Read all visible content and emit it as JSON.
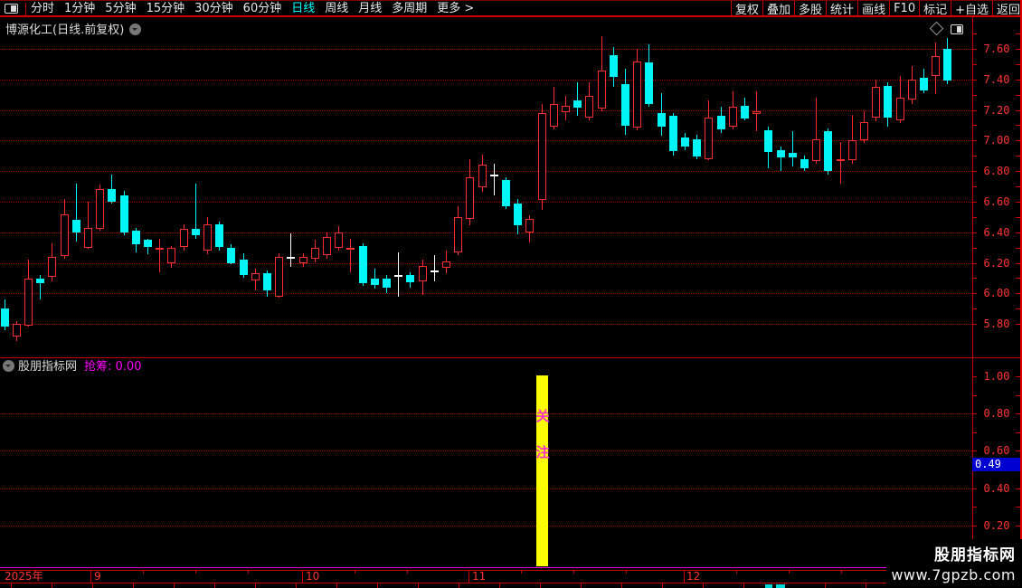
{
  "topbar": {
    "left_items": [
      {
        "label": "分时",
        "active": false
      },
      {
        "label": "1分钟",
        "active": false
      },
      {
        "label": "5分钟",
        "active": false
      },
      {
        "label": "15分钟",
        "active": false
      },
      {
        "label": "30分钟",
        "active": false
      },
      {
        "label": "60分钟",
        "active": false
      },
      {
        "label": "日线",
        "active": true
      },
      {
        "label": "周线",
        "active": false
      },
      {
        "label": "月线",
        "active": false
      },
      {
        "label": "多周期",
        "active": false
      },
      {
        "label": "更多 >",
        "active": false
      }
    ],
    "right_items": [
      "复权",
      "叠加",
      "多股",
      "统计",
      "画线",
      "F10",
      "标记",
      "+自选",
      "返回"
    ]
  },
  "title_bar": {
    "title": "博源化工(日线.前复权)"
  },
  "indicator": {
    "source": "股朋指标网",
    "display": "抢筹: 0.00",
    "name": "抢筹",
    "value": "0.00",
    "signal_chars": [
      "关",
      "注"
    ],
    "marker_value": "0.49"
  },
  "time_axis": {
    "labels": [
      {
        "text": "2025年",
        "x": 5
      },
      {
        "text": "9",
        "x": 104
      },
      {
        "text": "10",
        "x": 338
      },
      {
        "text": "11",
        "x": 522
      },
      {
        "text": "12",
        "x": 759
      }
    ],
    "month_boundaries": [
      100,
      334,
      518,
      756
    ]
  },
  "watermark": {
    "line1": "股朋指标网",
    "line2": "www.7gpzb.com"
  },
  "colors": {
    "up": "#fd2e2e",
    "down": "#00f6f6",
    "flat": "#ffffff",
    "grid": "#9e0000",
    "axis_text": "#ff3434",
    "line": "#c80000",
    "magenta": "#ff00ff",
    "signal_bar": "#ffff00",
    "marker_bg": "#0000d0",
    "active_tab": "#00ffff"
  },
  "chart_data": {
    "type": "candlestick",
    "title": "博源化工(日线.前复权)",
    "x_axis_labels": [
      "2025年",
      "9",
      "10",
      "11",
      "12"
    ],
    "y_axis_ticks": [
      7.6,
      7.4,
      7.2,
      7.0,
      6.8,
      6.6,
      6.4,
      6.2,
      6.0,
      5.8
    ],
    "price_range_visible": [
      5.69,
      7.68
    ],
    "ohlc": [
      [
        5.9,
        5.96,
        5.76,
        5.78
      ],
      [
        5.72,
        5.82,
        5.69,
        5.8
      ],
      [
        5.79,
        6.22,
        5.78,
        6.1
      ],
      [
        6.1,
        6.12,
        5.96,
        6.07
      ],
      [
        6.11,
        6.33,
        6.08,
        6.24
      ],
      [
        6.25,
        6.62,
        6.23,
        6.52
      ],
      [
        6.48,
        6.72,
        6.34,
        6.4
      ],
      [
        6.3,
        6.6,
        6.29,
        6.43
      ],
      [
        6.42,
        6.71,
        6.41,
        6.68
      ],
      [
        6.68,
        6.78,
        6.59,
        6.6
      ],
      [
        6.64,
        6.67,
        6.38,
        6.4
      ],
      [
        6.41,
        6.43,
        6.27,
        6.32
      ],
      [
        6.35,
        6.36,
        6.26,
        6.3
      ],
      [
        6.29,
        6.36,
        6.14,
        6.3
      ],
      [
        6.2,
        6.31,
        6.17,
        6.3
      ],
      [
        6.3,
        6.45,
        6.28,
        6.42
      ],
      [
        6.42,
        6.72,
        6.36,
        6.38
      ],
      [
        6.28,
        6.5,
        6.26,
        6.45
      ],
      [
        6.45,
        6.47,
        6.28,
        6.3
      ],
      [
        6.3,
        6.32,
        6.19,
        6.2
      ],
      [
        6.22,
        6.26,
        6.1,
        6.12
      ],
      [
        6.08,
        6.16,
        6.02,
        6.13
      ],
      [
        6.13,
        6.15,
        5.98,
        6.02
      ],
      [
        5.98,
        6.26,
        5.97,
        6.24
      ],
      [
        6.24,
        6.39,
        6.17,
        6.24
      ],
      [
        6.2,
        6.26,
        6.17,
        6.24
      ],
      [
        6.23,
        6.35,
        6.2,
        6.3
      ],
      [
        6.25,
        6.4,
        6.23,
        6.37
      ],
      [
        6.3,
        6.44,
        6.28,
        6.4
      ],
      [
        6.29,
        6.36,
        6.14,
        6.3
      ],
      [
        6.31,
        6.33,
        6.05,
        6.07
      ],
      [
        6.1,
        6.16,
        6.03,
        6.06
      ],
      [
        6.1,
        6.12,
        6.0,
        6.04
      ],
      [
        6.12,
        6.27,
        5.98,
        6.12
      ],
      [
        6.12,
        6.14,
        6.04,
        6.07
      ],
      [
        6.08,
        6.22,
        5.99,
        6.18
      ],
      [
        6.15,
        6.25,
        6.08,
        6.15
      ],
      [
        6.17,
        6.28,
        6.13,
        6.21
      ],
      [
        6.27,
        6.57,
        6.25,
        6.5
      ],
      [
        6.49,
        6.88,
        6.45,
        6.76
      ],
      [
        6.69,
        6.91,
        6.67,
        6.84
      ],
      [
        6.78,
        6.85,
        6.64,
        6.78
      ],
      [
        6.74,
        6.76,
        6.55,
        6.57
      ],
      [
        6.59,
        6.62,
        6.39,
        6.45
      ],
      [
        6.4,
        6.51,
        6.33,
        6.49
      ],
      [
        6.61,
        7.24,
        6.55,
        7.18
      ],
      [
        7.09,
        7.35,
        7.07,
        7.24
      ],
      [
        7.19,
        7.29,
        7.13,
        7.23
      ],
      [
        7.26,
        7.38,
        7.16,
        7.21
      ],
      [
        7.15,
        7.38,
        7.13,
        7.29
      ],
      [
        7.21,
        7.68,
        7.19,
        7.46
      ],
      [
        7.56,
        7.61,
        7.35,
        7.42
      ],
      [
        7.37,
        7.47,
        7.04,
        7.1
      ],
      [
        7.09,
        7.6,
        7.07,
        7.52
      ],
      [
        7.51,
        7.63,
        7.22,
        7.24
      ],
      [
        7.18,
        7.31,
        7.03,
        7.09
      ],
      [
        7.16,
        7.18,
        6.9,
        6.93
      ],
      [
        7.02,
        7.05,
        6.94,
        6.96
      ],
      [
        7.01,
        7.04,
        6.88,
        6.9
      ],
      [
        6.88,
        7.26,
        6.87,
        7.15
      ],
      [
        7.16,
        7.22,
        7.05,
        7.07
      ],
      [
        7.09,
        7.32,
        7.07,
        7.22
      ],
      [
        7.23,
        7.28,
        7.13,
        7.15
      ],
      [
        7.17,
        7.32,
        7.06,
        7.19
      ],
      [
        7.07,
        7.09,
        6.82,
        6.93
      ],
      [
        6.94,
        6.96,
        6.8,
        6.89
      ],
      [
        6.92,
        7.06,
        6.83,
        6.89
      ],
      [
        6.88,
        6.9,
        6.8,
        6.82
      ],
      [
        6.87,
        7.28,
        6.85,
        7.01
      ],
      [
        7.06,
        7.08,
        6.78,
        6.8
      ],
      [
        6.87,
        6.99,
        6.72,
        6.88
      ],
      [
        6.87,
        7.17,
        6.85,
        7.0
      ],
      [
        7.0,
        7.19,
        6.98,
        7.12
      ],
      [
        7.15,
        7.4,
        7.13,
        7.35
      ],
      [
        7.36,
        7.38,
        7.09,
        7.15
      ],
      [
        7.13,
        7.42,
        7.11,
        7.28
      ],
      [
        7.27,
        7.49,
        7.24,
        7.4
      ],
      [
        7.41,
        7.47,
        7.31,
        7.33
      ],
      [
        7.42,
        7.64,
        7.3,
        7.55
      ],
      [
        7.6,
        7.67,
        7.37,
        7.39
      ]
    ],
    "indicator_panel": {
      "type": "bar",
      "name": "抢筹",
      "current_value": 0.0,
      "y_ticks": [
        1.0,
        0.8,
        0.6,
        0.4,
        0.2
      ],
      "bars": [
        {
          "index": 45,
          "value": 1.0,
          "color": "#ffff00",
          "annotation": "关注"
        }
      ],
      "axis_marker": {
        "value": 0.49,
        "bg": "#0000d0"
      }
    }
  }
}
